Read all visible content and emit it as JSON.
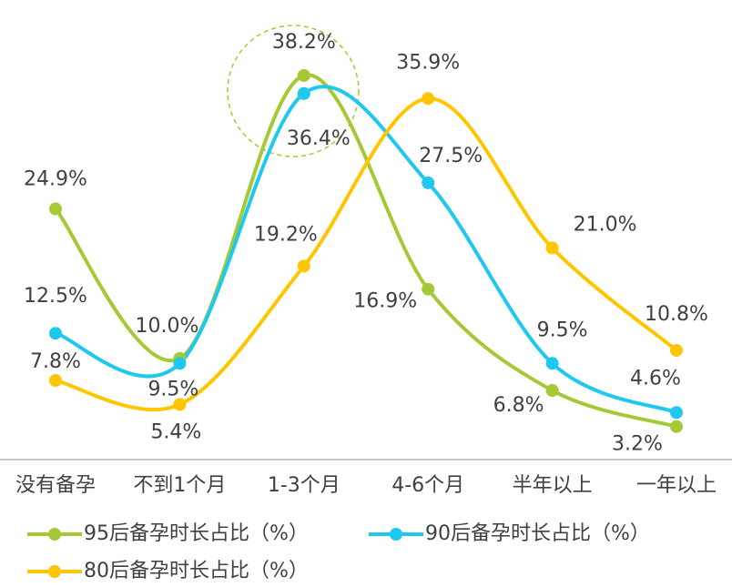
{
  "chart_data": {
    "type": "line",
    "categories": [
      "没有备孕",
      "不到1个月",
      "1-3个月",
      "4-6个月",
      "半年以上",
      "一年以上"
    ],
    "series": [
      {
        "name": "95后备孕时长占比（%）",
        "color": "#a5c934",
        "values": [
          24.9,
          10.0,
          38.2,
          16.9,
          6.8,
          3.2
        ],
        "value_labels": [
          "24.9%",
          "10.0%",
          "38.2%",
          "16.9%",
          "6.8%",
          "3.2%"
        ]
      },
      {
        "name": "90后备孕时长占比（%）",
        "color": "#1ec8ee",
        "values": [
          12.5,
          9.5,
          36.4,
          27.5,
          9.5,
          4.6
        ],
        "value_labels": [
          "12.5%",
          "9.5%",
          "36.4%",
          "27.5%",
          "9.5%",
          "4.6%"
        ]
      },
      {
        "name": "80后备孕时长占比（%）",
        "color": "#ffc600",
        "values": [
          7.8,
          5.4,
          19.2,
          35.9,
          21.0,
          10.8
        ],
        "value_labels": [
          "7.8%",
          "5.4%",
          "19.2%",
          "35.9%",
          "21.0%",
          "10.8%"
        ]
      }
    ],
    "ylim": [
      0,
      45
    ]
  }
}
